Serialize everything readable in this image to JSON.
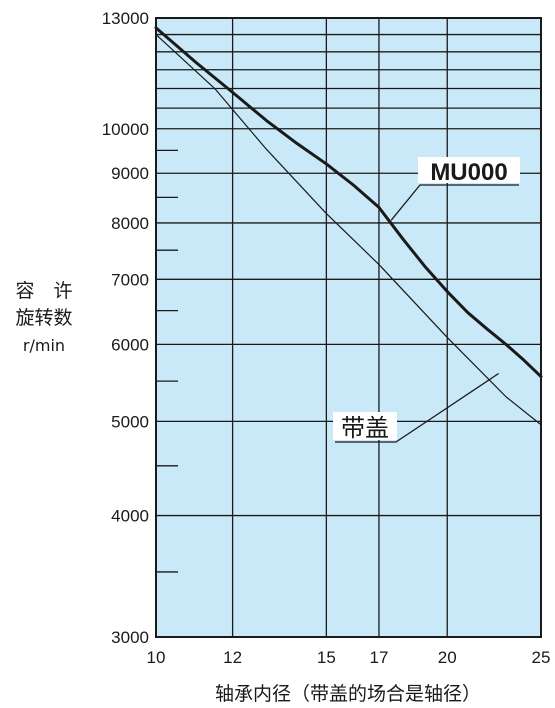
{
  "chart_data": {
    "type": "line",
    "x_scale": "log",
    "y_scale": "log",
    "xlim": [
      10,
      25
    ],
    "ylim": [
      3000,
      13000
    ],
    "x_ticks": [
      10,
      12,
      15,
      17,
      20,
      25
    ],
    "y_ticks": [
      3000,
      4000,
      5000,
      6000,
      7000,
      8000,
      9000,
      10000,
      13000
    ],
    "x_tick_labels": [
      "10",
      "12",
      "15",
      "17",
      "20",
      "25"
    ],
    "y_tick_labels": [
      "3000",
      "4000",
      "5000",
      "6000",
      "7000",
      "8000",
      "9000",
      "10000",
      "13000"
    ],
    "xlabel": "轴承内径（带盖的场合是轴径）",
    "ylabel_lines": [
      "容　许",
      "旋转数",
      "r/min"
    ],
    "grid": true,
    "background_color": "#c9e9f8",
    "series": [
      {
        "name": "MU000",
        "line_weight": "bold",
        "points": [
          [
            10,
            12700
          ],
          [
            11,
            11700
          ],
          [
            12,
            10900
          ],
          [
            13,
            10200
          ],
          [
            14,
            9650
          ],
          [
            15,
            9200
          ],
          [
            16,
            8750
          ],
          [
            17,
            8300
          ],
          [
            18,
            7700
          ],
          [
            19,
            7200
          ],
          [
            20,
            6800
          ],
          [
            21,
            6470
          ],
          [
            22,
            6220
          ],
          [
            23,
            6000
          ],
          [
            24,
            5780
          ],
          [
            25,
            5560
          ]
        ]
      },
      {
        "name": "带盖",
        "line_weight": "thin",
        "points": [
          [
            10,
            12500
          ],
          [
            11.5,
            11000
          ],
          [
            13,
            9530
          ],
          [
            15,
            8180
          ],
          [
            17,
            7250
          ],
          [
            20,
            6100
          ],
          [
            23,
            5300
          ],
          [
            25,
            4960
          ]
        ]
      }
    ],
    "annotations": [
      {
        "text": "MU000",
        "series": "MU000"
      },
      {
        "text": "带盖",
        "series": "带盖"
      }
    ]
  }
}
